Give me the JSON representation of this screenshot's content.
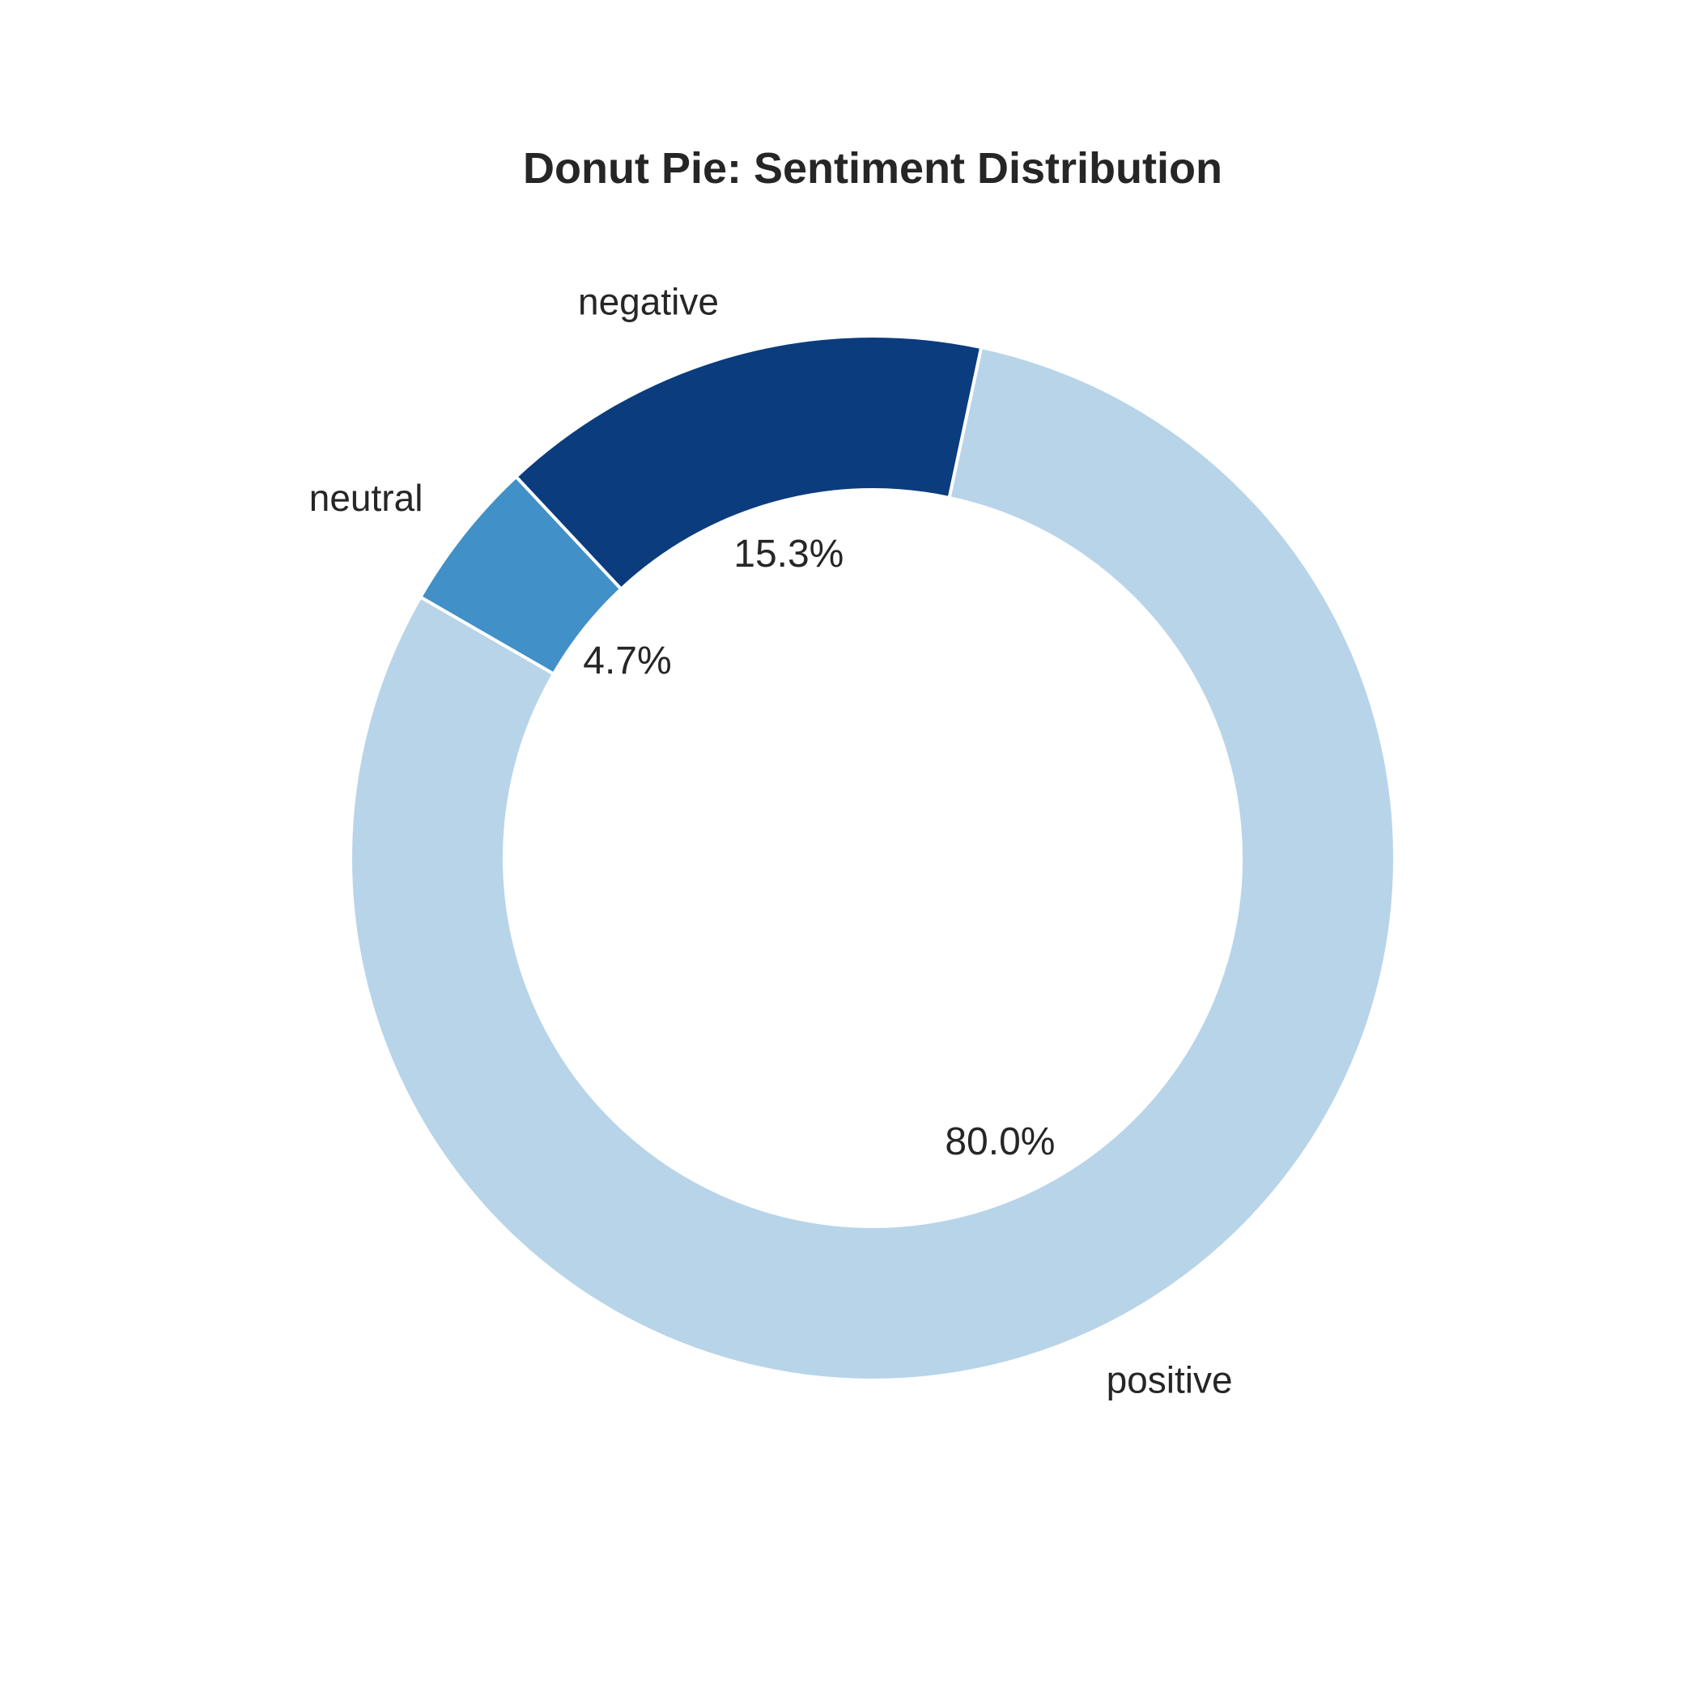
{
  "chart_data": {
    "type": "pie",
    "donut": true,
    "title": "Donut Pie: Sentiment Distribution",
    "categories": [
      "positive",
      "negative",
      "neutral"
    ],
    "values": [
      80.0,
      15.3,
      4.7
    ],
    "value_labels": [
      "80.0%",
      "15.3%",
      "4.7%"
    ],
    "colors": [
      "#b8d4e9",
      "#0b3c7d",
      "#4190c7"
    ],
    "start_angle": 150,
    "direction": "counterclockwise",
    "legend": "none"
  }
}
